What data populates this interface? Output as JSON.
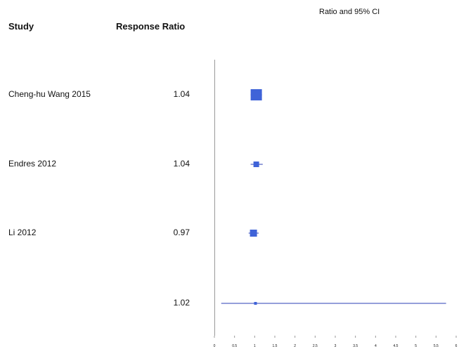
{
  "headers": {
    "study": "Study",
    "ratio": "Response Ratio"
  },
  "chart_data": {
    "type": "forest",
    "title": "Ratio and 95% CI",
    "xlim": [
      0,
      6
    ],
    "ticks": [
      "0",
      "0.5",
      "1",
      "1.5",
      "2",
      "2.5",
      "3",
      "3.5",
      "4",
      "4.5",
      "5",
      "5.5",
      "6"
    ],
    "rows": [
      {
        "study": "Cheng-hu Wang 2015",
        "ratio_text": "1.04",
        "estimate": 1.04,
        "ci": [
          0.9,
          1.18
        ],
        "weight": "large"
      },
      {
        "study": "Endres 2012",
        "ratio_text": "1.04",
        "estimate": 1.04,
        "ci": [
          0.9,
          1.2
        ],
        "weight": "small"
      },
      {
        "study": "Li 2012",
        "ratio_text": "0.97",
        "estimate": 0.97,
        "ci": [
          0.85,
          1.1
        ],
        "weight": "medium"
      },
      {
        "study": "",
        "ratio_text": "1.02",
        "estimate": 1.02,
        "ci": [
          0.17,
          5.75
        ],
        "weight": "tiny"
      }
    ],
    "colors": {
      "marker": "#3f63d8",
      "ci_line": "#2b3fb5",
      "axis": "#999999"
    }
  }
}
